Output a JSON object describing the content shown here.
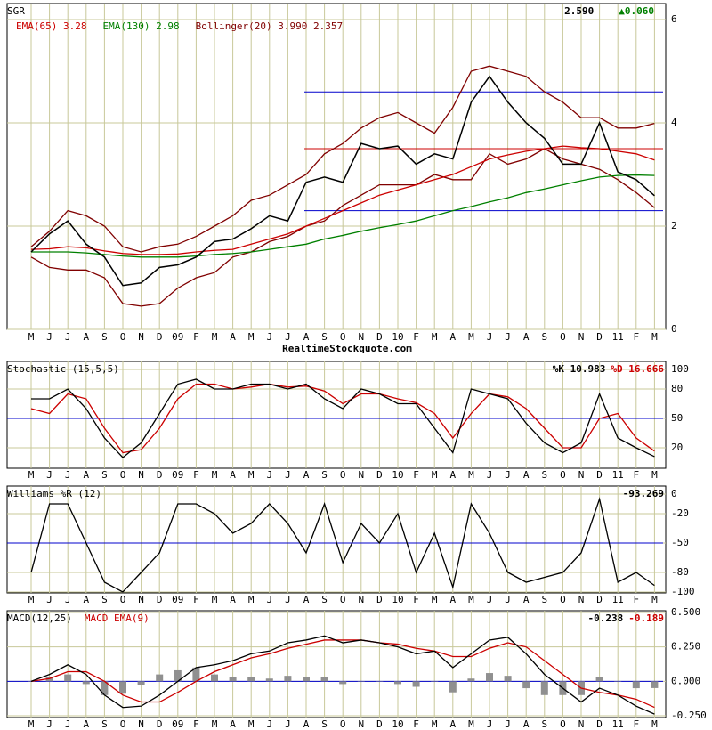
{
  "chart_data": [
    {
      "type": "line",
      "title": "SGR",
      "readouts": [
        {
          "text": "2.590",
          "color": "#000000"
        },
        {
          "text": "▲0.060",
          "color": "#008000"
        }
      ],
      "legend": [
        {
          "text": "EMA(65) 3.28",
          "color": "#cc0000"
        },
        {
          "text": "EMA(130) 2.98",
          "color": "#008000"
        },
        {
          "text": "Bollinger(20) 3.990 2.357",
          "color": "#800000"
        }
      ],
      "categories": [
        "M",
        "J",
        "J",
        "A",
        "S",
        "O",
        "N",
        "D",
        "09",
        "F",
        "M",
        "A",
        "M",
        "J",
        "J",
        "A",
        "S",
        "O",
        "N",
        "D",
        "10",
        "F",
        "M",
        "A",
        "M",
        "J",
        "J",
        "A",
        "S",
        "O",
        "N",
        "D",
        "11",
        "F",
        "M"
      ],
      "ylim": [
        0,
        6
      ],
      "yticks": [
        0,
        2,
        4,
        6
      ],
      "grid": true,
      "levels": [
        {
          "value": 4.6,
          "color": "#0000cc"
        },
        {
          "value": 3.5,
          "color": "#cc0000"
        },
        {
          "value": 2.3,
          "color": "#0000cc"
        }
      ],
      "series": [
        {
          "name": "Bollinger upper",
          "color": "#800000",
          "values": [
            1.6,
            1.9,
            2.3,
            2.2,
            2.0,
            1.6,
            1.5,
            1.6,
            1.65,
            1.8,
            2.0,
            2.2,
            2.5,
            2.6,
            2.8,
            3.0,
            3.4,
            3.6,
            3.9,
            4.1,
            4.2,
            4.0,
            3.8,
            4.3,
            5.0,
            5.1,
            5.0,
            4.9,
            4.6,
            4.4,
            4.1,
            4.1,
            3.9,
            3.9,
            3.99
          ]
        },
        {
          "name": "Bollinger lower",
          "color": "#800000",
          "values": [
            1.4,
            1.2,
            1.15,
            1.15,
            1.0,
            0.5,
            0.45,
            0.5,
            0.8,
            1.0,
            1.1,
            1.4,
            1.5,
            1.7,
            1.8,
            2.0,
            2.1,
            2.4,
            2.6,
            2.8,
            2.8,
            2.8,
            3.0,
            2.9,
            2.9,
            3.4,
            3.2,
            3.3,
            3.5,
            3.3,
            3.2,
            3.1,
            2.9,
            2.65,
            2.357
          ]
        },
        {
          "name": "EMA(130)",
          "color": "#008000",
          "values": [
            1.5,
            1.5,
            1.5,
            1.48,
            1.45,
            1.42,
            1.4,
            1.4,
            1.4,
            1.42,
            1.45,
            1.47,
            1.5,
            1.55,
            1.6,
            1.65,
            1.75,
            1.82,
            1.9,
            1.97,
            2.03,
            2.1,
            2.2,
            2.3,
            2.38,
            2.47,
            2.55,
            2.65,
            2.72,
            2.8,
            2.88,
            2.95,
            2.98,
            2.99,
            2.98
          ]
        },
        {
          "name": "EMA(65)",
          "color": "#cc0000",
          "values": [
            1.55,
            1.56,
            1.6,
            1.58,
            1.52,
            1.47,
            1.45,
            1.45,
            1.46,
            1.5,
            1.53,
            1.55,
            1.65,
            1.75,
            1.85,
            2.0,
            2.15,
            2.3,
            2.45,
            2.6,
            2.7,
            2.8,
            2.9,
            3.0,
            3.15,
            3.3,
            3.38,
            3.45,
            3.5,
            3.55,
            3.52,
            3.5,
            3.45,
            3.4,
            3.28
          ]
        },
        {
          "name": "Price",
          "color": "#000000",
          "values": [
            1.5,
            1.85,
            2.1,
            1.65,
            1.4,
            0.85,
            0.9,
            1.2,
            1.25,
            1.4,
            1.7,
            1.75,
            1.95,
            2.2,
            2.1,
            2.85,
            2.95,
            2.85,
            3.6,
            3.5,
            3.55,
            3.2,
            3.4,
            3.3,
            4.4,
            4.9,
            4.4,
            4.0,
            3.7,
            3.2,
            3.2,
            4.0,
            3.05,
            2.9,
            2.59
          ]
        }
      ]
    },
    {
      "type": "line",
      "title": "Stochastic (15,5,5)",
      "readouts": [
        {
          "text": "%K 10.983",
          "color": "#000000"
        },
        {
          "text": "%D 16.666",
          "color": "#cc0000"
        }
      ],
      "ylim": [
        0,
        100
      ],
      "yticks": [
        20,
        50,
        80,
        100
      ],
      "grid": true,
      "levels": [
        {
          "value": 50,
          "color": "#0000cc"
        }
      ],
      "series": [
        {
          "name": "%D",
          "color": "#cc0000",
          "values": [
            60,
            55,
            75,
            70,
            40,
            15,
            18,
            40,
            70,
            85,
            85,
            80,
            82,
            85,
            82,
            83,
            78,
            65,
            75,
            75,
            70,
            66,
            55,
            30,
            55,
            75,
            72,
            60,
            40,
            20,
            20,
            50,
            55,
            30,
            16.666
          ]
        },
        {
          "name": "%K",
          "color": "#000000",
          "values": [
            70,
            70,
            80,
            60,
            30,
            10,
            25,
            55,
            85,
            90,
            80,
            80,
            85,
            85,
            80,
            85,
            70,
            60,
            80,
            75,
            65,
            65,
            40,
            15,
            80,
            75,
            70,
            45,
            25,
            15,
            25,
            75,
            30,
            20,
            10.983
          ]
        }
      ]
    },
    {
      "type": "line",
      "title": "Williams %R (12)",
      "readouts": [
        {
          "text": "-93.269",
          "color": "#000000"
        }
      ],
      "ylim": [
        -100,
        0
      ],
      "yticks": [
        0,
        -20,
        -50,
        -80,
        -100
      ],
      "grid": true,
      "levels": [
        {
          "value": -50,
          "color": "#0000cc"
        }
      ],
      "series": [
        {
          "name": "%R",
          "color": "#000000",
          "values": [
            -80,
            -10,
            -10,
            -50,
            -90,
            -100,
            -80,
            -60,
            -10,
            -10,
            -20,
            -40,
            -30,
            -10,
            -30,
            -60,
            -10,
            -70,
            -30,
            -50,
            -20,
            -80,
            -40,
            -95,
            -10,
            -40,
            -80,
            -90,
            -85,
            -80,
            -60,
            -5,
            -90,
            -80,
            -93.269
          ]
        }
      ]
    },
    {
      "type": "line",
      "title": "MACD(12,25)",
      "legend": [
        {
          "text": "MACD EMA(9)",
          "color": "#cc0000"
        }
      ],
      "readouts": [
        {
          "text": "-0.238",
          "color": "#000000"
        },
        {
          "text": "-0.189",
          "color": "#cc0000"
        }
      ],
      "ylim": [
        -0.25,
        0.5
      ],
      "yticks": [
        {
          "value": 0.5,
          "label": "0.500"
        },
        {
          "value": 0.25,
          "label": "0.250"
        },
        {
          "value": 0,
          "label": "0.000"
        },
        {
          "value": -0.25,
          "label": "-0.250"
        }
      ],
      "grid": true,
      "levels": [
        {
          "value": 0,
          "color": "#0000cc"
        }
      ],
      "series": [
        {
          "name": "Histogram",
          "style": "bar",
          "color": "#909090",
          "values": [
            0,
            0.03,
            0.05,
            -0.02,
            -0.1,
            -0.09,
            -0.03,
            0.05,
            0.08,
            0.1,
            0.05,
            0.03,
            0.03,
            0.02,
            0.04,
            0.03,
            0.03,
            -0.02,
            0,
            0,
            -0.02,
            -0.04,
            0,
            -0.08,
            0.02,
            0.06,
            0.04,
            -0.05,
            -0.1,
            -0.1,
            -0.1,
            0.03,
            0,
            -0.05,
            -0.049
          ]
        },
        {
          "name": "MACD EMA(9)",
          "color": "#cc0000",
          "values": [
            0,
            0.02,
            0.07,
            0.07,
            0,
            -0.1,
            -0.15,
            -0.15,
            -0.08,
            0,
            0.07,
            0.12,
            0.17,
            0.2,
            0.24,
            0.27,
            0.3,
            0.3,
            0.3,
            0.28,
            0.27,
            0.24,
            0.22,
            0.18,
            0.18,
            0.24,
            0.28,
            0.25,
            0.15,
            0.05,
            -0.05,
            -0.08,
            -0.1,
            -0.13,
            -0.189
          ]
        },
        {
          "name": "MACD",
          "color": "#000000",
          "values": [
            0,
            0.05,
            0.12,
            0.05,
            -0.1,
            -0.19,
            -0.18,
            -0.1,
            0,
            0.1,
            0.12,
            0.15,
            0.2,
            0.22,
            0.28,
            0.3,
            0.33,
            0.28,
            0.3,
            0.28,
            0.25,
            0.2,
            0.22,
            0.1,
            0.2,
            0.3,
            0.32,
            0.2,
            0.05,
            -0.05,
            -0.15,
            -0.05,
            -0.1,
            -0.18,
            -0.238
          ]
        }
      ]
    }
  ],
  "source": "RealtimeStockquote.com"
}
